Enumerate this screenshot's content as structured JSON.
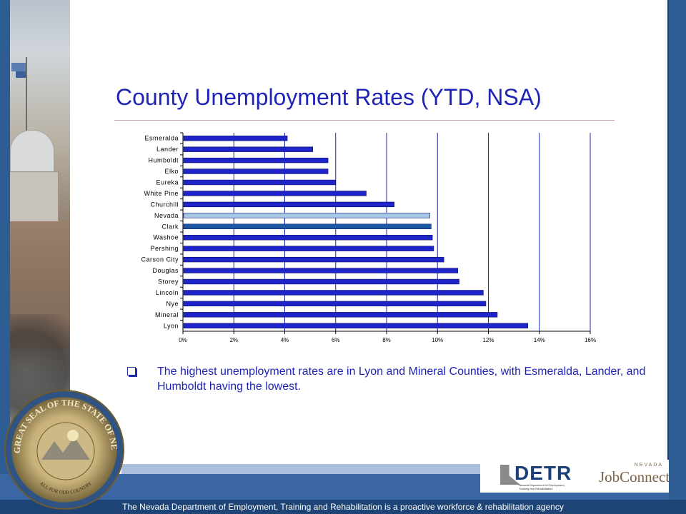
{
  "slide": {
    "title": "County Unemployment Rates (YTD, NSA)",
    "bullet": "The highest unemployment rates are in Lyon and Mineral Counties, with Esmeralda, Lander, and Humboldt having the lowest.",
    "footer": "The Nevada Department of Employment, Training and Rehabilitation is a proactive workforce & rehabilitation agency"
  },
  "logos": {
    "detr": "DETR",
    "detr_sub": "Nevada Department of Employment, Training and Rehabilitation",
    "jobconnect_top": "NEVADA",
    "jobconnect": "JobConnect",
    "seal_text": "THE GREAT SEAL OF THE STATE OF NEVADA",
    "seal_motto": "ALL FOR OUR COUNTRY"
  },
  "colors": {
    "title": "#1f24b8",
    "bar": "#1e24c8",
    "bar_nevada": "#a7c7e7",
    "bar_clark": "#1c5aa6",
    "grid": "#1e2aa8"
  },
  "chart_data": {
    "type": "bar",
    "orientation": "horizontal",
    "categories": [
      "Esmeralda",
      "Lander",
      "Humboldt",
      "Elko",
      "Eureka",
      "White Pine",
      "Churchill",
      "Nevada",
      "Clark",
      "Washoe",
      "Pershing",
      "Carson City",
      "Douglas",
      "Storey",
      "Lincoln",
      "Nye",
      "Mineral",
      "Lyon"
    ],
    "values": [
      4.1,
      5.1,
      5.7,
      5.7,
      6.0,
      7.2,
      8.3,
      9.7,
      9.75,
      9.8,
      9.85,
      10.25,
      10.8,
      10.85,
      11.8,
      11.9,
      12.35,
      13.55
    ],
    "xlim": [
      0,
      16
    ],
    "xticks": [
      "0%",
      "2%",
      "4%",
      "6%",
      "8%",
      "10%",
      "12%",
      "14%",
      "16%"
    ],
    "grid": true,
    "highlight": {
      "Nevada": "bar_nevada",
      "Clark": "bar_clark"
    }
  }
}
